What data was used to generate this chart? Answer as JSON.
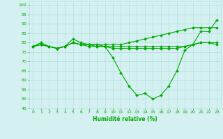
{
  "xlabel": "Humidité relative (%)",
  "background_color": "#d4f0f0",
  "grid_color": "#aadddd",
  "line_color": "#00aa00",
  "marker": "D",
  "markersize": 2,
  "linewidth": 0.8,
  "xlim": [
    -0.5,
    23.5
  ],
  "ylim": [
    45,
    102
  ],
  "yticks": [
    45,
    50,
    55,
    60,
    65,
    70,
    75,
    80,
    85,
    90,
    95,
    100
  ],
  "xticks": [
    0,
    1,
    2,
    3,
    4,
    5,
    6,
    7,
    8,
    9,
    10,
    11,
    12,
    13,
    14,
    15,
    16,
    17,
    18,
    19,
    20,
    21,
    22,
    23
  ],
  "series": [
    [
      78,
      80,
      78,
      77,
      78,
      82,
      80,
      79,
      78,
      78,
      72,
      64,
      57,
      52,
      53,
      50,
      52,
      57,
      65,
      76,
      79,
      86,
      86,
      92
    ],
    [
      78,
      79,
      78,
      77,
      78,
      80,
      79,
      78,
      78,
      78,
      77,
      77,
      77,
      77,
      77,
      77,
      77,
      77,
      77,
      78,
      79,
      80,
      80,
      79
    ],
    [
      78,
      79,
      78,
      77,
      78,
      80,
      79,
      79,
      79,
      79,
      79,
      79,
      80,
      81,
      82,
      83,
      84,
      85,
      86,
      87,
      88,
      88,
      88,
      88
    ],
    [
      78,
      79,
      78,
      77,
      78,
      80,
      79,
      79,
      79,
      78,
      78,
      78,
      78,
      78,
      78,
      78,
      78,
      78,
      78,
      78,
      79,
      80,
      80,
      80
    ]
  ]
}
